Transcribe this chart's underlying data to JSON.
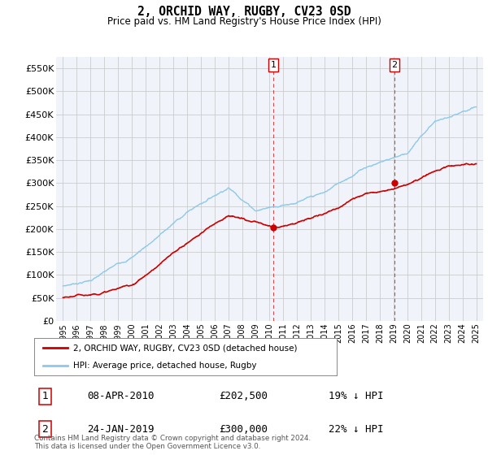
{
  "title": "2, ORCHID WAY, RUGBY, CV23 0SD",
  "subtitle": "Price paid vs. HM Land Registry's House Price Index (HPI)",
  "ylim": [
    0,
    575000
  ],
  "xlim": [
    1994.5,
    2025.5
  ],
  "yticks": [
    0,
    50000,
    100000,
    150000,
    200000,
    250000,
    300000,
    350000,
    400000,
    450000,
    500000,
    550000
  ],
  "ytick_labels": [
    "£0",
    "£50K",
    "£100K",
    "£150K",
    "£200K",
    "£250K",
    "£300K",
    "£350K",
    "£400K",
    "£450K",
    "£500K",
    "£550K"
  ],
  "xtick_labels": [
    "1995",
    "1996",
    "1997",
    "1998",
    "1999",
    "2000",
    "2001",
    "2002",
    "2003",
    "2004",
    "2005",
    "2006",
    "2007",
    "2008",
    "2009",
    "2010",
    "2011",
    "2012",
    "2013",
    "2014",
    "2015",
    "2016",
    "2017",
    "2018",
    "2019",
    "2020",
    "2021",
    "2022",
    "2023",
    "2024",
    "2025"
  ],
  "hpi_color": "#8fc8e8",
  "price_color": "#cc0000",
  "sale1_x": 2010.27,
  "sale1_y": 202500,
  "sale2_x": 2019.07,
  "sale2_y": 300000,
  "vline_color": "#cc0000",
  "legend_house": "2, ORCHID WAY, RUGBY, CV23 0SD (detached house)",
  "legend_hpi": "HPI: Average price, detached house, Rugby",
  "table_rows": [
    {
      "num": "1",
      "date": "08-APR-2010",
      "price": "£202,500",
      "hpi": "19% ↓ HPI"
    },
    {
      "num": "2",
      "date": "24-JAN-2019",
      "price": "£300,000",
      "hpi": "22% ↓ HPI"
    }
  ],
  "footnote": "Contains HM Land Registry data © Crown copyright and database right 2024.\nThis data is licensed under the Open Government Licence v3.0.",
  "background_color": "#ffffff",
  "plot_bg_color": "#f0f4fa"
}
